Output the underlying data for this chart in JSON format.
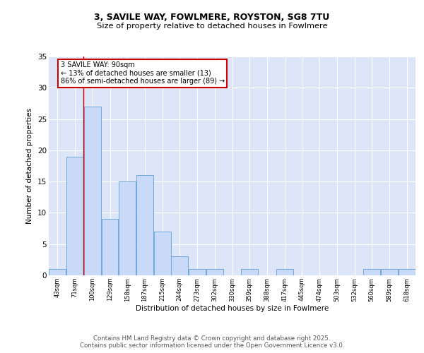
{
  "title1": "3, SAVILE WAY, FOWLMERE, ROYSTON, SG8 7TU",
  "title2": "Size of property relative to detached houses in Fowlmere",
  "xlabel": "Distribution of detached houses by size in Fowlmere",
  "ylabel": "Number of detached properties",
  "categories": [
    "43sqm",
    "71sqm",
    "100sqm",
    "129sqm",
    "158sqm",
    "187sqm",
    "215sqm",
    "244sqm",
    "273sqm",
    "302sqm",
    "330sqm",
    "359sqm",
    "388sqm",
    "417sqm",
    "445sqm",
    "474sqm",
    "503sqm",
    "532sqm",
    "560sqm",
    "589sqm",
    "618sqm"
  ],
  "values": [
    1,
    19,
    27,
    9,
    15,
    16,
    7,
    3,
    1,
    1,
    0,
    1,
    0,
    1,
    0,
    0,
    0,
    0,
    1,
    1,
    1
  ],
  "bar_color": "#c9daf8",
  "bar_edge_color": "#6fa8dc",
  "bar_edge_width": 0.7,
  "red_line_x": 1.5,
  "annotation_text": "3 SAVILE WAY: 90sqm\n← 13% of detached houses are smaller (13)\n86% of semi-detached houses are larger (89) →",
  "annotation_box_color": "#ffffff",
  "annotation_box_edge": "#cc0000",
  "ylim": [
    0,
    35
  ],
  "yticks": [
    0,
    5,
    10,
    15,
    20,
    25,
    30,
    35
  ],
  "background_color": "#dce6f8",
  "footer1": "Contains HM Land Registry data © Crown copyright and database right 2025.",
  "footer2": "Contains public sector information licensed under the Open Government Licence v3.0."
}
